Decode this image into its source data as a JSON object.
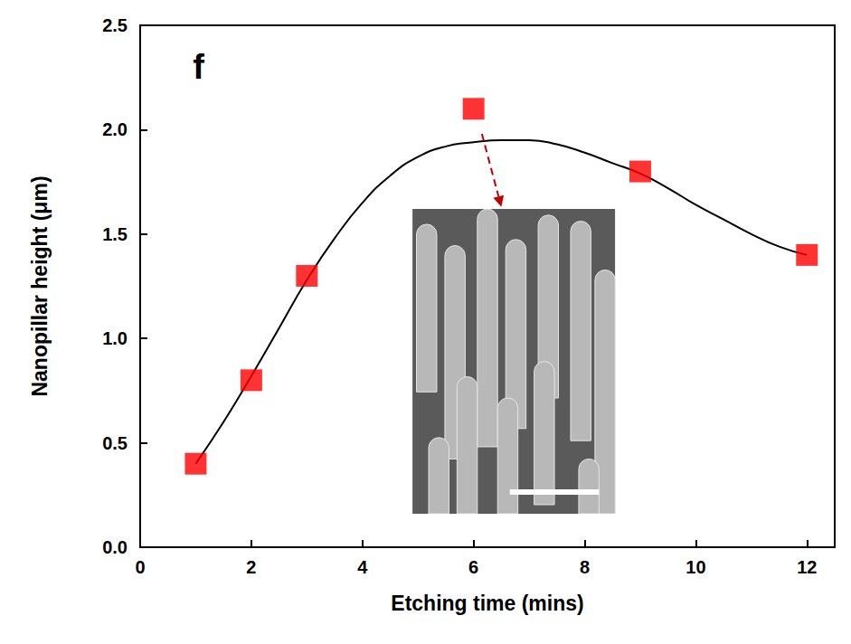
{
  "chart_data": {
    "type": "scatter",
    "annotations": [
      "f"
    ],
    "x_label": "Etching time (mins)",
    "y_label": "Nanopillar height (μm)",
    "xlim": [
      0,
      12.5
    ],
    "xticks": [
      0,
      2,
      4,
      6,
      8,
      10,
      12
    ],
    "ylim": [
      0,
      2.5
    ],
    "yticks": [
      {
        "value": 0,
        "label": "0.0"
      },
      {
        "value": 0.5,
        "label": "0.5"
      },
      {
        "value": 1,
        "label": "1.0"
      },
      {
        "value": 1.5,
        "label": "1.5"
      },
      {
        "value": 2,
        "label": "2.0"
      },
      {
        "value": 2.5,
        "label": "2.5"
      }
    ],
    "grid": false,
    "series": [
      {
        "type": "scatter",
        "color": "#ff0000",
        "marker": "square",
        "x": [
          1,
          2,
          3,
          6,
          9,
          12
        ],
        "values": [
          0.4,
          0.8,
          1.3,
          2.1,
          1.8,
          1.4
        ]
      },
      {
        "type": "line",
        "color": "#000000",
        "line_style": "solid",
        "x": [
          1,
          1.5,
          2,
          2.5,
          3,
          3.5,
          4,
          4.5,
          5,
          5.5,
          6,
          6.5,
          7,
          7.5,
          8,
          8.5,
          9,
          9.5,
          10,
          10.5,
          11,
          11.5,
          12
        ],
        "values": [
          0.4,
          0.6,
          0.82,
          1.05,
          1.28,
          1.48,
          1.65,
          1.78,
          1.87,
          1.92,
          1.94,
          1.95,
          1.95,
          1.93,
          1.89,
          1.84,
          1.79,
          1.72,
          1.64,
          1.57,
          1.5,
          1.44,
          1.4
        ]
      }
    ]
  }
}
